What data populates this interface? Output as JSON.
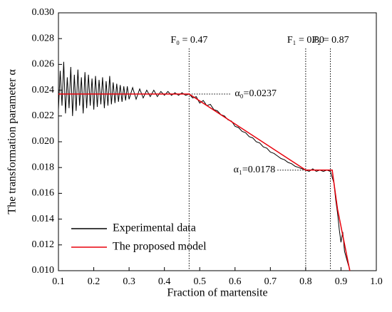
{
  "chart_data": {
    "type": "line",
    "xlabel": "Fraction of martensite",
    "ylabel": "The transformation parameter α",
    "xlim": [
      0.1,
      1.0
    ],
    "ylim": [
      0.01,
      0.03
    ],
    "xticks": [
      0.1,
      0.2,
      0.3,
      0.4,
      0.5,
      0.6,
      0.7,
      0.8,
      0.9,
      {
        "value": 1.0,
        "label": "1.0"
      }
    ],
    "yticks": [
      {
        "value": 0.01,
        "label": "0.010"
      },
      0.012,
      0.014,
      0.016,
      0.018,
      {
        "value": 0.02,
        "label": "0.020"
      },
      0.022,
      0.024,
      0.026,
      0.028,
      {
        "value": 0.03,
        "label": "0.030"
      }
    ],
    "legend": "lower left",
    "series": [
      {
        "name": "Experimental data",
        "color": "#000000",
        "x": [
          0.1,
          0.105,
          0.11,
          0.115,
          0.12,
          0.125,
          0.13,
          0.135,
          0.14,
          0.145,
          0.15,
          0.155,
          0.16,
          0.165,
          0.17,
          0.175,
          0.18,
          0.185,
          0.19,
          0.195,
          0.2,
          0.205,
          0.21,
          0.215,
          0.22,
          0.225,
          0.23,
          0.235,
          0.24,
          0.245,
          0.25,
          0.255,
          0.26,
          0.265,
          0.27,
          0.275,
          0.28,
          0.285,
          0.29,
          0.295,
          0.3,
          0.31,
          0.32,
          0.33,
          0.34,
          0.35,
          0.36,
          0.37,
          0.38,
          0.39,
          0.4,
          0.41,
          0.42,
          0.43,
          0.44,
          0.45,
          0.46,
          0.47,
          0.48,
          0.49,
          0.5,
          0.51,
          0.52,
          0.53,
          0.54,
          0.55,
          0.56,
          0.57,
          0.58,
          0.59,
          0.6,
          0.61,
          0.62,
          0.63,
          0.64,
          0.65,
          0.66,
          0.67,
          0.68,
          0.69,
          0.7,
          0.71,
          0.72,
          0.73,
          0.74,
          0.75,
          0.76,
          0.77,
          0.78,
          0.79,
          0.8,
          0.81,
          0.82,
          0.83,
          0.84,
          0.85,
          0.86,
          0.87,
          0.88,
          0.885,
          0.89,
          0.895,
          0.9,
          0.905,
          0.91,
          0.915,
          0.92,
          0.925
        ],
        "values": [
          0.0225,
          0.0255,
          0.0228,
          0.0262,
          0.0222,
          0.025,
          0.0226,
          0.0258,
          0.022,
          0.0252,
          0.0224,
          0.0256,
          0.0228,
          0.025,
          0.0222,
          0.0254,
          0.0226,
          0.0252,
          0.0228,
          0.0249,
          0.0225,
          0.0251,
          0.0227,
          0.0248,
          0.0229,
          0.025,
          0.0226,
          0.0247,
          0.0228,
          0.0251,
          0.0229,
          0.0246,
          0.023,
          0.0245,
          0.0231,
          0.0244,
          0.0231,
          0.0243,
          0.0232,
          0.0243,
          0.0233,
          0.0242,
          0.0233,
          0.0241,
          0.0234,
          0.024,
          0.0235,
          0.024,
          0.0235,
          0.0239,
          0.0236,
          0.0239,
          0.0236,
          0.0238,
          0.0236,
          0.0238,
          0.0236,
          0.0237,
          0.0234,
          0.0235,
          0.023,
          0.0232,
          0.0228,
          0.0229,
          0.0225,
          0.0224,
          0.0221,
          0.022,
          0.0217,
          0.0216,
          0.0212,
          0.0211,
          0.0208,
          0.0207,
          0.0204,
          0.0203,
          0.02,
          0.0199,
          0.0196,
          0.0195,
          0.0192,
          0.0191,
          0.0189,
          0.0187,
          0.0186,
          0.0184,
          0.0183,
          0.0181,
          0.018,
          0.0179,
          0.0178,
          0.0177,
          0.0179,
          0.0177,
          0.0178,
          0.0177,
          0.0178,
          0.0177,
          0.0168,
          0.0155,
          0.0145,
          0.0132,
          0.0122,
          0.013,
          0.0115,
          0.011,
          0.0105,
          0.0101
        ]
      },
      {
        "name": "The proposed model",
        "color": "#e8000b",
        "x": [
          0.1,
          0.47,
          0.8,
          0.875,
          0.89,
          0.925
        ],
        "values": [
          0.0237,
          0.0237,
          0.0178,
          0.0178,
          0.0148,
          0.01
        ]
      }
    ],
    "annotations": [
      {
        "text": "F₀ = 0.47",
        "x": 0.47
      },
      {
        "text": "F₁ = 0.80",
        "x": 0.8
      },
      {
        "text": "F₂ = 0.87",
        "x": 0.87
      },
      {
        "text": "α₀=0.0237",
        "y": 0.0237
      },
      {
        "text": "α₁=0.0178",
        "y": 0.0178
      }
    ]
  }
}
